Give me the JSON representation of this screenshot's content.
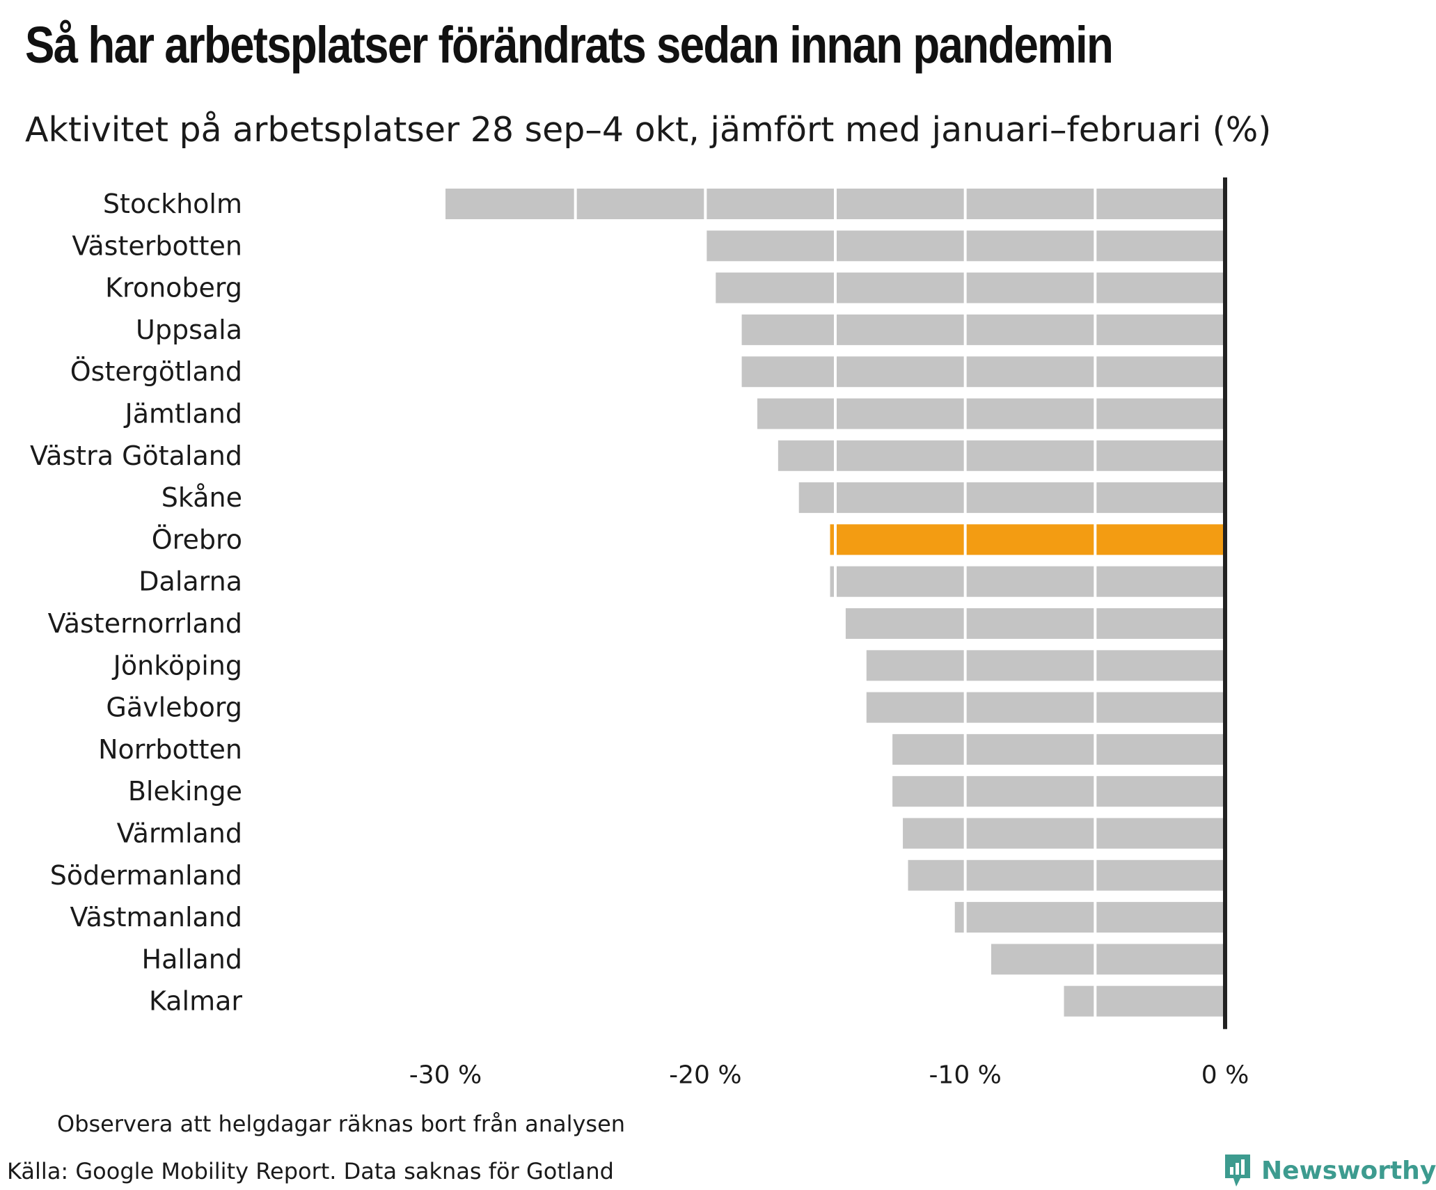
{
  "header": {
    "title": "Så har arbetsplatser förändrats sedan innan pandemin",
    "subtitle": "Aktivitet på arbetsplatser 28 sep–4 okt, jämfört med januari–februari (%)"
  },
  "footer": {
    "note": "Observera att helgdagar räknas bort från analysen",
    "source": "Källa: Google Mobility Report. Data saknas för Gotland",
    "brand": "Newsworthy"
  },
  "colors": {
    "bar": "#c4c4c4",
    "highlight": "#f39c12",
    "axis": "#222222",
    "brand": "#3d9b8f"
  },
  "chart_data": {
    "type": "bar",
    "orientation": "horizontal",
    "title": "Så har arbetsplatser förändrats sedan innan pandemin",
    "subtitle": "Aktivitet på arbetsplatser 28 sep–4 okt, jämfört med januari–februari (%)",
    "xlabel": "",
    "ylabel": "",
    "xlim": [
      -30,
      0
    ],
    "xticks": [
      -30,
      -20,
      -10,
      0
    ],
    "xtick_labels": [
      "-30 %",
      "-20 %",
      "-10 %",
      "0 %"
    ],
    "gridlines": [
      -25,
      -20,
      -15,
      -10,
      -5
    ],
    "highlight": "Örebro",
    "categories": [
      "Stockholm",
      "Västerbotten",
      "Kronoberg",
      "Uppsala",
      "Östergötland",
      "Jämtland",
      "Västra Götaland",
      "Skåne",
      "Örebro",
      "Dalarna",
      "Västernorrland",
      "Jönköping",
      "Gävleborg",
      "Norrbotten",
      "Blekinge",
      "Värmland",
      "Södermanland",
      "Västmanland",
      "Halland",
      "Kalmar"
    ],
    "values": [
      -30,
      -20,
      -19.6,
      -18.6,
      -18.6,
      -18,
      -17.2,
      -16.4,
      -15.2,
      -15.2,
      -14.6,
      -13.8,
      -13.8,
      -12.8,
      -12.8,
      -12.4,
      -12.2,
      -10.4,
      -9,
      -6.2
    ]
  }
}
